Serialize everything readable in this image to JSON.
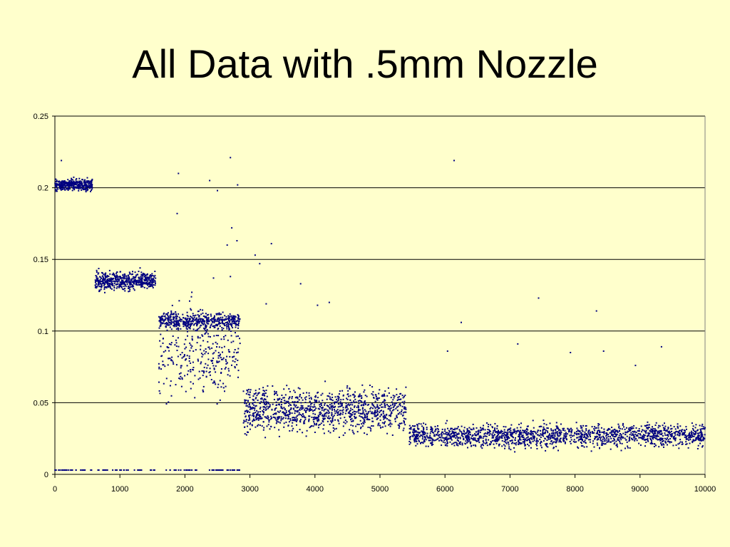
{
  "title": "All Data with .5mm Nozzle",
  "chart_data": {
    "type": "scatter",
    "title": "All Data with .5mm Nozzle",
    "xlabel": "",
    "ylabel": "",
    "xlim": [
      0,
      10000
    ],
    "ylim": [
      0,
      0.25
    ],
    "xticks": [
      0,
      1000,
      2000,
      3000,
      4000,
      5000,
      6000,
      7000,
      8000,
      9000,
      10000
    ],
    "xtick_labels": [
      "0",
      "1000",
      "2000",
      "3000",
      "4000",
      "5000",
      "6000",
      "7000",
      "8000",
      "9000",
      "10000"
    ],
    "yticks": [
      0,
      0.05,
      0.1,
      0.15,
      0.2,
      0.25
    ],
    "ytick_labels": [
      "0",
      "0.05",
      "0.1",
      "0.15",
      "0.2",
      "0.25"
    ],
    "grid": "horizontal",
    "legend": "none",
    "marker_color": "#000080",
    "clusters": [
      {
        "x_range": [
          0,
          580
        ],
        "y_center": 0.202,
        "y_spread": 0.004,
        "count": 360
      },
      {
        "x_range": [
          620,
          1550
        ],
        "y_center": 0.135,
        "y_spread": 0.006,
        "count": 520
      },
      {
        "x_range": [
          1600,
          2850
        ],
        "y_center": 0.107,
        "y_spread": 0.006,
        "count": 480
      },
      {
        "x_range": [
          1600,
          2850
        ],
        "y_center": 0.085,
        "y_spread": 0.03,
        "count": 320
      },
      {
        "x_range": [
          2900,
          5400
        ],
        "y_center": 0.045,
        "y_spread": 0.015,
        "count": 1100
      },
      {
        "x_range": [
          5450,
          10000
        ],
        "y_center": 0.027,
        "y_spread": 0.008,
        "count": 1700
      }
    ],
    "baseline_points": {
      "x_ranges": [
        [
          0,
          580
        ],
        [
          650,
          1550
        ],
        [
          1700,
          2200
        ],
        [
          2350,
          2850
        ]
      ],
      "y": 0.003,
      "count": 110
    },
    "outliers": [
      {
        "x": 100,
        "y": 0.219
      },
      {
        "x": 1900,
        "y": 0.21
      },
      {
        "x": 1880,
        "y": 0.182
      },
      {
        "x": 2380,
        "y": 0.205
      },
      {
        "x": 2500,
        "y": 0.198
      },
      {
        "x": 2700,
        "y": 0.221
      },
      {
        "x": 2810,
        "y": 0.202
      },
      {
        "x": 2720,
        "y": 0.172
      },
      {
        "x": 2800,
        "y": 0.163
      },
      {
        "x": 2650,
        "y": 0.16
      },
      {
        "x": 2700,
        "y": 0.138
      },
      {
        "x": 2440,
        "y": 0.137
      },
      {
        "x": 3080,
        "y": 0.153
      },
      {
        "x": 3150,
        "y": 0.147
      },
      {
        "x": 3330,
        "y": 0.161
      },
      {
        "x": 3780,
        "y": 0.133
      },
      {
        "x": 4220,
        "y": 0.12
      },
      {
        "x": 4040,
        "y": 0.118
      },
      {
        "x": 3250,
        "y": 0.119
      },
      {
        "x": 6140,
        "y": 0.219
      },
      {
        "x": 7440,
        "y": 0.123
      },
      {
        "x": 8330,
        "y": 0.114
      },
      {
        "x": 6250,
        "y": 0.106
      },
      {
        "x": 7120,
        "y": 0.091
      },
      {
        "x": 9330,
        "y": 0.089
      },
      {
        "x": 8440,
        "y": 0.086
      },
      {
        "x": 6040,
        "y": 0.086
      },
      {
        "x": 7930,
        "y": 0.085
      },
      {
        "x": 8930,
        "y": 0.076
      }
    ]
  }
}
